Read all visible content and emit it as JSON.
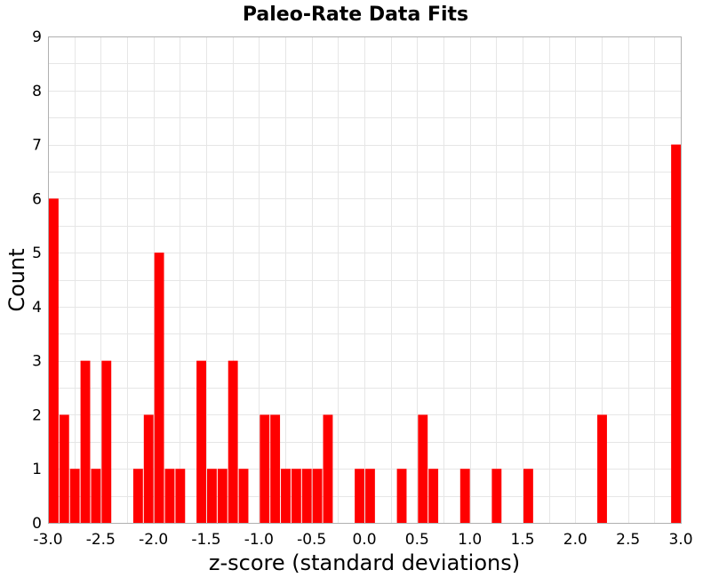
{
  "chart_data": {
    "type": "bar",
    "title": "Paleo-Rate Data Fits",
    "xlabel": "z-score (standard deviations)",
    "ylabel": "Count",
    "xlim": [
      -3.0,
      3.0
    ],
    "ylim": [
      0,
      9
    ],
    "bin_width": 0.1,
    "x_ticks": [
      "-3.0",
      "-2.5",
      "-2.0",
      "-1.5",
      "-1.0",
      "-0.5",
      "0.0",
      "0.5",
      "1.0",
      "1.5",
      "2.0",
      "2.5",
      "3.0"
    ],
    "y_ticks": [
      "0",
      "1",
      "2",
      "3",
      "4",
      "5",
      "6",
      "7",
      "8",
      "9"
    ],
    "grid": true,
    "bar_color": "#ff0000",
    "bins": [
      {
        "x": -2.95,
        "count": 6
      },
      {
        "x": -2.85,
        "count": 2
      },
      {
        "x": -2.75,
        "count": 1
      },
      {
        "x": -2.65,
        "count": 3
      },
      {
        "x": -2.55,
        "count": 1
      },
      {
        "x": -2.45,
        "count": 3
      },
      {
        "x": -2.15,
        "count": 1
      },
      {
        "x": -2.05,
        "count": 2
      },
      {
        "x": -1.95,
        "count": 5
      },
      {
        "x": -1.85,
        "count": 1
      },
      {
        "x": -1.75,
        "count": 1
      },
      {
        "x": -1.55,
        "count": 3
      },
      {
        "x": -1.45,
        "count": 1
      },
      {
        "x": -1.35,
        "count": 1
      },
      {
        "x": -1.25,
        "count": 3
      },
      {
        "x": -1.15,
        "count": 1
      },
      {
        "x": -0.95,
        "count": 2
      },
      {
        "x": -0.85,
        "count": 2
      },
      {
        "x": -0.75,
        "count": 1
      },
      {
        "x": -0.65,
        "count": 1
      },
      {
        "x": -0.55,
        "count": 1
      },
      {
        "x": -0.45,
        "count": 1
      },
      {
        "x": -0.35,
        "count": 2
      },
      {
        "x": -0.05,
        "count": 1
      },
      {
        "x": 0.05,
        "count": 1
      },
      {
        "x": 0.35,
        "count": 1
      },
      {
        "x": 0.55,
        "count": 2
      },
      {
        "x": 0.65,
        "count": 1
      },
      {
        "x": 0.95,
        "count": 1
      },
      {
        "x": 1.25,
        "count": 1
      },
      {
        "x": 1.55,
        "count": 1
      },
      {
        "x": 2.25,
        "count": 2
      },
      {
        "x": 2.95,
        "count": 7
      }
    ]
  }
}
